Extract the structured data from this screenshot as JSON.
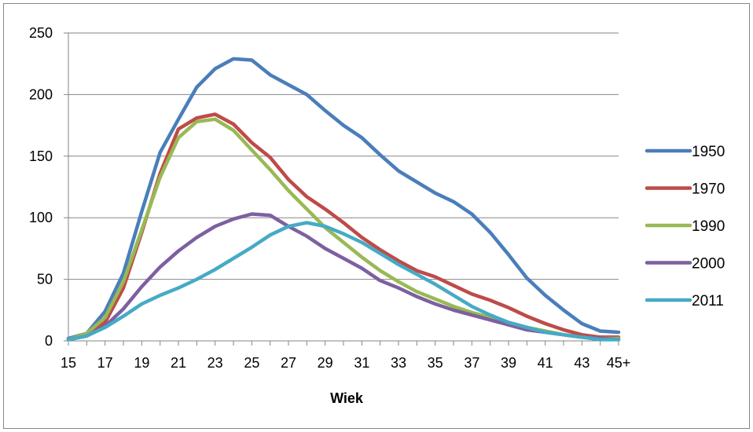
{
  "chart_data": {
    "type": "line",
    "title": "",
    "xlabel": "Wiek",
    "ylabel": "",
    "ylim": [
      0,
      250
    ],
    "yticks": [
      0,
      50,
      100,
      150,
      200,
      250
    ],
    "grid": true,
    "legend_position": "right",
    "x": [
      "15",
      "16",
      "17",
      "18",
      "19",
      "20",
      "21",
      "22",
      "23",
      "24",
      "25",
      "26",
      "27",
      "28",
      "29",
      "30",
      "31",
      "32",
      "33",
      "34",
      "35",
      "36",
      "37",
      "38",
      "39",
      "40",
      "41",
      "42",
      "43",
      "44",
      "45+"
    ],
    "x_tick_labels": [
      "15",
      "17",
      "19",
      "21",
      "23",
      "25",
      "27",
      "29",
      "31",
      "33",
      "35",
      "37",
      "39",
      "41",
      "43",
      "45+"
    ],
    "series": [
      {
        "name": "1950",
        "color": "#4a7ebb",
        "values": [
          2,
          6,
          24,
          55,
          105,
          153,
          180,
          206,
          221,
          229,
          228,
          216,
          208,
          200,
          187,
          175,
          165,
          151,
          138,
          129,
          120,
          113,
          103,
          88,
          70,
          51,
          37,
          25,
          14,
          8,
          7
        ]
      },
      {
        "name": "1970",
        "color": "#be4b48",
        "values": [
          1,
          6,
          15,
          43,
          88,
          136,
          172,
          181,
          184,
          176,
          161,
          149,
          131,
          117,
          107,
          96,
          84,
          74,
          65,
          57,
          52,
          45,
          38,
          33,
          27,
          20,
          14,
          9,
          5,
          3,
          3
        ]
      },
      {
        "name": "1990",
        "color": "#98b954",
        "values": [
          1,
          6,
          19,
          48,
          90,
          133,
          165,
          178,
          180,
          171,
          155,
          139,
          122,
          107,
          92,
          80,
          68,
          57,
          48,
          40,
          34,
          28,
          23,
          19,
          15,
          11,
          8,
          5,
          3,
          2,
          2
        ]
      },
      {
        "name": "2000",
        "color": "#7d60a0",
        "values": [
          1,
          4,
          12,
          26,
          44,
          60,
          73,
          84,
          93,
          99,
          103,
          102,
          93,
          85,
          75,
          67,
          59,
          49,
          43,
          36,
          30,
          25,
          21,
          17,
          13,
          9,
          7,
          5,
          3,
          2,
          1
        ]
      },
      {
        "name": "2011",
        "color": "#46aac5",
        "values": [
          1,
          4,
          11,
          20,
          30,
          37,
          43,
          50,
          58,
          67,
          76,
          86,
          93,
          96,
          93,
          87,
          80,
          71,
          62,
          54,
          46,
          37,
          28,
          21,
          15,
          11,
          7,
          5,
          3,
          1,
          1
        ]
      }
    ]
  }
}
